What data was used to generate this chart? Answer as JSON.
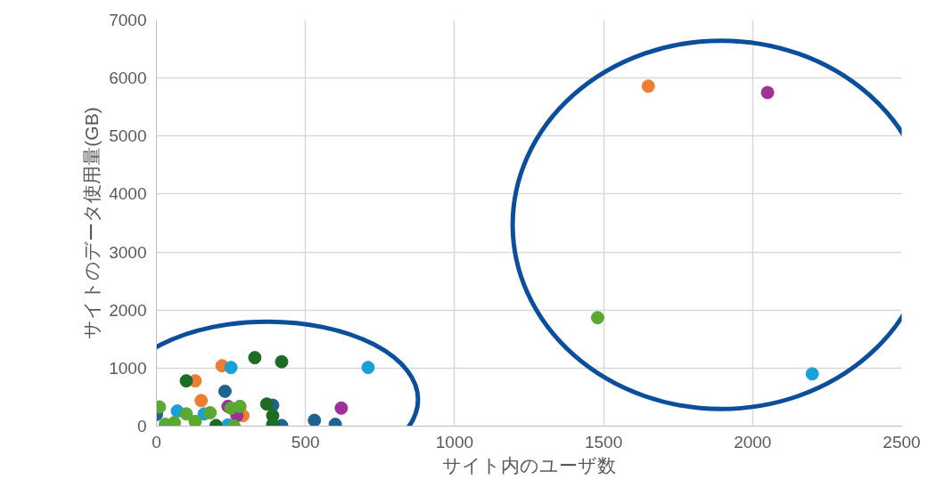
{
  "chart_data": {
    "type": "scatter",
    "xlabel": "サイト内のユーザ数",
    "ylabel": "サイトのデータ使用量(GB)",
    "xlim": [
      0,
      2500
    ],
    "ylim": [
      0,
      7000
    ],
    "xticks": [
      0,
      500,
      1000,
      1500,
      2000,
      2500
    ],
    "yticks": [
      0,
      1000,
      2000,
      3000,
      4000,
      5000,
      6000,
      7000
    ],
    "grid": true,
    "marker": "circle",
    "series": [
      {
        "color": "#1f6391",
        "x": [
          0,
          230,
          530,
          600,
          420,
          390
        ],
        "values": [
          200,
          600,
          100,
          30,
          10,
          360
        ]
      },
      {
        "color": "#ed7d31",
        "x": [
          1650,
          220,
          130,
          150,
          290
        ],
        "values": [
          5860,
          1040,
          780,
          440,
          180
        ]
      },
      {
        "color": "#1aa0d8",
        "x": [
          2200,
          250,
          710,
          160,
          70,
          240
        ],
        "values": [
          900,
          1010,
          1010,
          210,
          260,
          20
        ]
      },
      {
        "color": "#1e6b23",
        "x": [
          330,
          420,
          100,
          370,
          390,
          390,
          200
        ],
        "values": [
          1180,
          1110,
          780,
          380,
          180,
          30,
          10
        ]
      },
      {
        "color": "#9e3097",
        "x": [
          2050,
          620,
          240,
          270
        ],
        "values": [
          5750,
          310,
          340,
          180
        ]
      },
      {
        "color": "#5aa832",
        "x": [
          1480,
          10,
          250,
          280,
          180,
          100,
          260,
          30,
          60,
          130
        ],
        "values": [
          1870,
          330,
          310,
          340,
          230,
          210,
          0,
          30,
          60,
          80
        ]
      }
    ]
  }
}
